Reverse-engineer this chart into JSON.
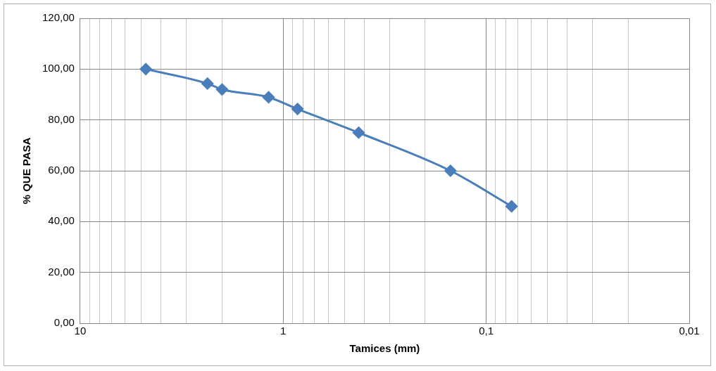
{
  "chart_data": {
    "type": "line",
    "xlabel": "Tamices (mm)",
    "ylabel": "% QUE PASA",
    "x": [
      4.75,
      2.36,
      2,
      1.18,
      0.85,
      0.425,
      0.15,
      0.075
    ],
    "series": [
      {
        "color": "#4a7ebb",
        "values": [
          100,
          94.3,
          92,
          88.9,
          84.3,
          75,
          60,
          46
        ]
      }
    ],
    "log": "x",
    "xlim": [
      10,
      0.01
    ],
    "xticks": [
      {
        "value": 10,
        "label": "10"
      },
      {
        "value": 9,
        "label": null
      },
      {
        "value": 8,
        "label": null
      },
      {
        "value": 7,
        "label": null
      },
      {
        "value": 6,
        "label": null
      },
      {
        "value": 5,
        "label": null
      },
      {
        "value": 4,
        "label": null
      },
      {
        "value": 3,
        "label": null
      },
      {
        "value": 2,
        "label": null
      },
      {
        "value": 1,
        "label": "1"
      },
      {
        "value": 0.9,
        "label": null
      },
      {
        "value": 0.8,
        "label": null
      },
      {
        "value": 0.7,
        "label": null
      },
      {
        "value": 0.6,
        "label": null
      },
      {
        "value": 0.5,
        "label": null
      },
      {
        "value": 0.4,
        "label": null
      },
      {
        "value": 0.3,
        "label": null
      },
      {
        "value": 0.2,
        "label": null
      },
      {
        "value": 0.1,
        "label": "0,1"
      },
      {
        "value": 0.09,
        "label": null
      },
      {
        "value": 0.08,
        "label": null
      },
      {
        "value": 0.07,
        "label": null
      },
      {
        "value": 0.06,
        "label": null
      },
      {
        "value": 0.05,
        "label": null
      },
      {
        "value": 0.04,
        "label": null
      },
      {
        "value": 0.03,
        "label": null
      },
      {
        "value": 0.02,
        "label": null
      },
      {
        "value": 0.01,
        "label": "0,01"
      }
    ],
    "ylim": [
      0,
      120
    ],
    "yticks": [
      {
        "value": 0,
        "label": "0,00"
      },
      {
        "value": 20,
        "label": "20,00"
      },
      {
        "value": 40,
        "label": "40,00"
      },
      {
        "value": 60,
        "label": "60,00"
      },
      {
        "value": 80,
        "label": "80,00"
      },
      {
        "value": 100,
        "label": "100,00"
      },
      {
        "value": 120,
        "label": "120,00"
      }
    ],
    "grid": true,
    "marker": "diamond",
    "line_style": "solid"
  }
}
